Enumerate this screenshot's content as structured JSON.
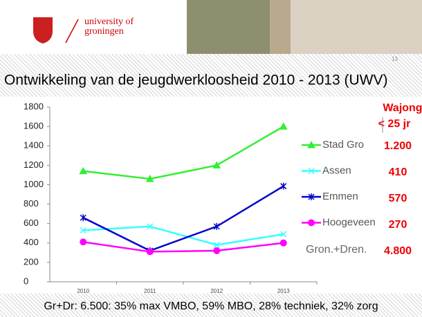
{
  "slide": {
    "logo": [
      "university of",
      "groningen"
    ],
    "number": "13",
    "footer": "Gr+Dr: 6.500: 35% max VMBO, 59% MBO, 28% techniek, 32% zorg"
  },
  "wajong": {
    "header": [
      "Wajong",
      "< 25 jr"
    ],
    "values": [
      "1.200",
      "410",
      "570",
      "270",
      "4.800"
    ],
    "total_label": "Gron.+Dren."
  },
  "chart_data": {
    "type": "line",
    "title": "Ontwikkeling van de jeugdwerkloosheid  2010 - 2013 (UWV)",
    "categories": [
      "2010",
      "2011",
      "2012",
      "2013"
    ],
    "series": [
      {
        "name": "Stad Gro",
        "color": "#33ee33",
        "marker": "triangle",
        "values": [
          1140,
          1060,
          1200,
          1600
        ]
      },
      {
        "name": "Assen",
        "color": "#33ffff",
        "marker": "x",
        "values": [
          530,
          570,
          380,
          490
        ]
      },
      {
        "name": "Emmen",
        "color": "#0000cc",
        "marker": "star",
        "values": [
          660,
          320,
          570,
          985
        ]
      },
      {
        "name": "Hoogeveen",
        "color": "#ff00ff",
        "marker": "circle",
        "values": [
          410,
          310,
          320,
          400
        ]
      }
    ],
    "ylim": [
      0,
      1800
    ],
    "yticks": [
      0,
      200,
      400,
      600,
      800,
      1000,
      1200,
      1400,
      1600,
      1800
    ],
    "grid": false
  }
}
